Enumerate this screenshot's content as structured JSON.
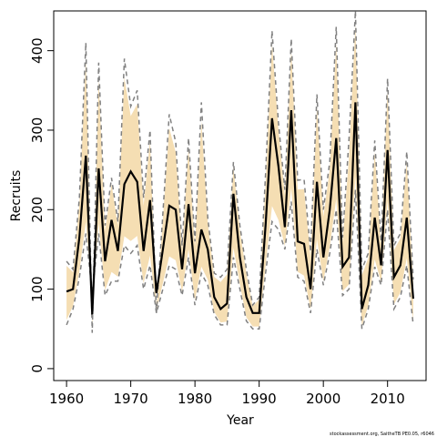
{
  "chart_data": {
    "type": "line",
    "title": "",
    "xlabel": "Year",
    "ylabel": "Recruits",
    "xlim": [
      1958,
      2016
    ],
    "ylim": [
      -15,
      450
    ],
    "xticks": [
      1960,
      1970,
      1980,
      1990,
      2000,
      2010
    ],
    "yticks": [
      0,
      100,
      200,
      300,
      400
    ],
    "footnote": "stockassessment.org, SaitheTB PE0.05, r6046",
    "colors": {
      "band": "#f5deb3",
      "median": "#000000",
      "bounds": "#808080"
    },
    "x": [
      1960,
      1961,
      1962,
      1963,
      1964,
      1965,
      1966,
      1967,
      1968,
      1969,
      1970,
      1971,
      1972,
      1973,
      1974,
      1975,
      1976,
      1977,
      1978,
      1979,
      1980,
      1981,
      1982,
      1983,
      1984,
      1985,
      1986,
      1987,
      1988,
      1989,
      1990,
      1991,
      1992,
      1993,
      1994,
      1995,
      1996,
      1997,
      1998,
      1999,
      2000,
      2001,
      2002,
      2003,
      2004,
      2005,
      2006,
      2007,
      2008,
      2009,
      2010,
      2011,
      2012,
      2013,
      2014
    ],
    "series": [
      {
        "values": [
          97,
          100,
          165,
          268,
          68,
          252,
          135,
          187,
          148,
          232,
          248,
          235,
          148,
          212,
          95,
          150,
          205,
          200,
          125,
          207,
          120,
          175,
          150,
          90,
          75,
          82,
          220,
          140,
          90,
          70,
          70,
          180,
          315,
          255,
          178,
          325,
          160,
          157,
          100,
          235,
          140,
          200,
          290,
          128,
          140,
          335,
          75,
          105,
          190,
          130,
          275,
          115,
          130,
          190,
          88
        ]
      },
      {
        "values": [
          135,
          125,
          215,
          410,
          45,
          385,
          180,
          240,
          185,
          390,
          330,
          350,
          215,
          300,
          70,
          195,
          320,
          285,
          155,
          290,
          160,
          335,
          190,
          120,
          115,
          125,
          260,
          180,
          125,
          80,
          90,
          245,
          425,
          310,
          225,
          415,
          237,
          238,
          147,
          345,
          200,
          260,
          430,
          165,
          290,
          450,
          125,
          145,
          287,
          160,
          365,
          155,
          170,
          273,
          112
        ]
      },
      {
        "values": [
          55,
          75,
          115,
          170,
          95,
          170,
          92,
          110,
          110,
          155,
          145,
          155,
          100,
          130,
          70,
          100,
          130,
          125,
          92,
          140,
          80,
          120,
          105,
          68,
          55,
          55,
          140,
          100,
          60,
          50,
          50,
          120,
          185,
          175,
          150,
          210,
          115,
          110,
          70,
          150,
          105,
          145,
          200,
          92,
          100,
          225,
          50,
          75,
          128,
          105,
          200,
          75,
          90,
          130,
          55
        ]
      }
    ]
  }
}
